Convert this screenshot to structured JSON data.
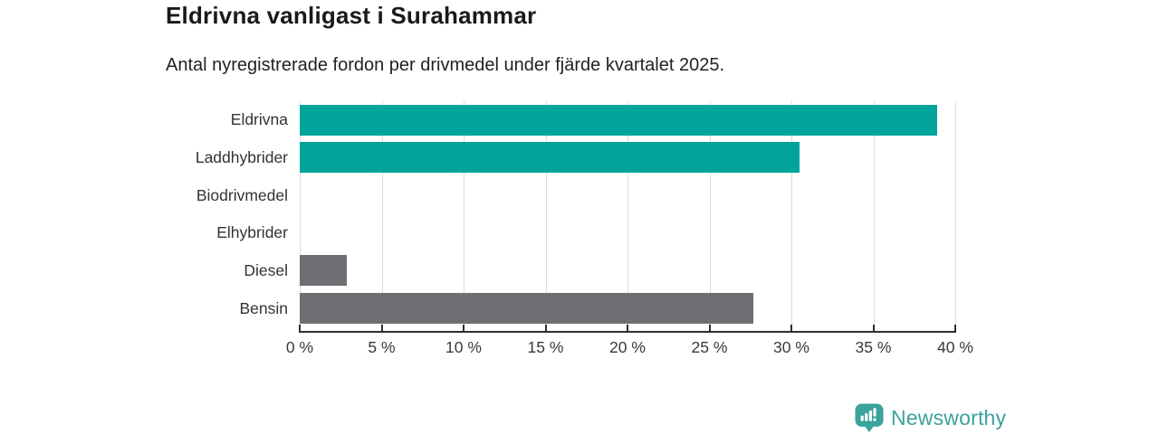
{
  "header": {
    "title": "Eldrivna vanligast i Surahammar",
    "subtitle": "Antal nyregistrerade fordon per drivmedel under fjärde kvartalet 2025."
  },
  "chart_data": {
    "type": "bar",
    "orientation": "horizontal",
    "title": "Eldrivna vanligast i Surahammar",
    "subtitle": "Antal nyregistrerade fordon per drivmedel under fjärde kvartalet 2025.",
    "categories": [
      "Eldrivna",
      "Laddhybrider",
      "Biodrivmedel",
      "Elhybrider",
      "Diesel",
      "Bensin"
    ],
    "values": [
      38.9,
      30.5,
      0,
      0,
      2.9,
      27.7
    ],
    "unit": "%",
    "bar_colors": [
      "#00a49b",
      "#00a49b",
      "#00a49b",
      "#00a49b",
      "#6e6e73",
      "#6e6e73"
    ],
    "xlabel": "",
    "ylabel": "",
    "xlim": [
      0,
      40
    ],
    "x_ticks": [
      0,
      5,
      10,
      15,
      20,
      25,
      30,
      35,
      40
    ],
    "x_tick_labels": [
      "0 %",
      "5 %",
      "10 %",
      "15 %",
      "20 %",
      "25 %",
      "30 %",
      "35 %",
      "40 %"
    ],
    "grid": true,
    "legend": false
  },
  "colors": {
    "accent_teal": "#00a49b",
    "neutral_gray": "#6e6e73",
    "gridline": "#dcdcdc",
    "axis": "#2e2e2e",
    "logo": "#3aa39c"
  },
  "footer": {
    "brand": "Newsworthy",
    "logo_icon": "bar-chart-speech-bubble-icon"
  }
}
